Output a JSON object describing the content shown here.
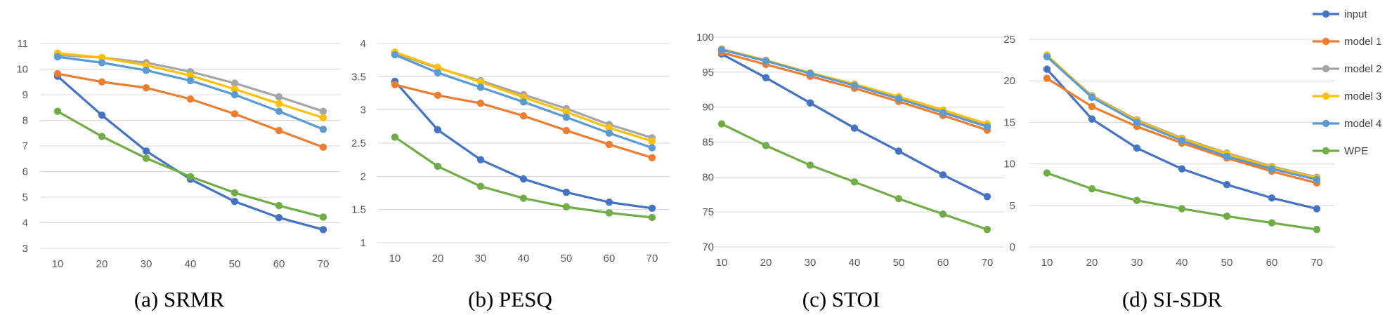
{
  "chart_data": [
    {
      "type": "line",
      "caption": "(a) SRMR",
      "x": [
        10,
        20,
        30,
        40,
        50,
        60,
        70
      ],
      "ylim": [
        3,
        11
      ],
      "yticks": [
        3,
        4,
        5,
        6,
        7,
        8,
        9,
        10,
        11
      ],
      "series": [
        {
          "name": "input",
          "values": [
            9.72,
            8.2,
            6.8,
            5.7,
            4.83,
            4.2,
            3.73
          ]
        },
        {
          "name": "model 1",
          "values": [
            9.82,
            9.5,
            9.27,
            8.83,
            8.25,
            7.6,
            6.95
          ]
        },
        {
          "name": "model 2",
          "values": [
            10.55,
            10.45,
            10.25,
            9.9,
            9.45,
            8.92,
            8.35
          ]
        },
        {
          "name": "model 3",
          "values": [
            10.62,
            10.45,
            10.15,
            9.75,
            9.22,
            8.65,
            8.1
          ]
        },
        {
          "name": "model 4",
          "values": [
            10.48,
            10.25,
            9.95,
            9.55,
            9.0,
            8.35,
            7.65
          ]
        },
        {
          "name": "WPE",
          "values": [
            8.35,
            7.37,
            6.52,
            5.8,
            5.17,
            4.67,
            4.22
          ]
        }
      ]
    },
    {
      "type": "line",
      "caption": "(b) PESQ",
      "x": [
        10,
        20,
        30,
        40,
        50,
        60,
        70
      ],
      "ylim": [
        1,
        4
      ],
      "yticks": [
        1,
        1.5,
        2,
        2.5,
        3,
        3.5,
        4
      ],
      "series": [
        {
          "name": "input",
          "values": [
            3.43,
            2.7,
            2.25,
            1.96,
            1.76,
            1.61,
            1.52
          ]
        },
        {
          "name": "model 1",
          "values": [
            3.38,
            3.22,
            3.1,
            2.91,
            2.69,
            2.48,
            2.28
          ]
        },
        {
          "name": "model 2",
          "values": [
            3.85,
            3.63,
            3.44,
            3.23,
            3.02,
            2.78,
            2.58
          ]
        },
        {
          "name": "model 3",
          "values": [
            3.87,
            3.64,
            3.42,
            3.19,
            2.97,
            2.73,
            2.53
          ]
        },
        {
          "name": "model 4",
          "values": [
            3.83,
            3.56,
            3.34,
            3.12,
            2.89,
            2.65,
            2.43
          ]
        },
        {
          "name": "WPE",
          "values": [
            2.59,
            2.15,
            1.85,
            1.67,
            1.54,
            1.45,
            1.38
          ]
        }
      ]
    },
    {
      "type": "line",
      "caption": "(c) STOI",
      "x": [
        10,
        20,
        30,
        40,
        50,
        60,
        70
      ],
      "ylim": [
        70,
        100
      ],
      "yticks": [
        70,
        75,
        80,
        85,
        90,
        95,
        100
      ],
      "series": [
        {
          "name": "input",
          "values": [
            97.6,
            94.2,
            90.6,
            87.0,
            83.7,
            80.3,
            77.2
          ]
        },
        {
          "name": "model 1",
          "values": [
            97.8,
            96.1,
            94.4,
            92.7,
            90.8,
            88.8,
            86.7
          ]
        },
        {
          "name": "model 2",
          "values": [
            98.3,
            96.7,
            94.9,
            93.2,
            91.4,
            89.5,
            87.5
          ]
        },
        {
          "name": "model 3",
          "values": [
            98.3,
            96.7,
            94.9,
            93.3,
            91.5,
            89.6,
            87.6
          ]
        },
        {
          "name": "model 4",
          "values": [
            98.2,
            96.6,
            94.8,
            93.1,
            91.2,
            89.2,
            87.2
          ]
        },
        {
          "name": "WPE",
          "values": [
            87.6,
            84.5,
            81.7,
            79.3,
            76.9,
            74.7,
            72.5
          ]
        }
      ]
    },
    {
      "type": "line",
      "caption": "(d) SI-SDR",
      "x": [
        10,
        20,
        30,
        40,
        50,
        60,
        70
      ],
      "ylim": [
        0,
        25
      ],
      "yticks": [
        0,
        5,
        10,
        15,
        20,
        25
      ],
      "series": [
        {
          "name": "input",
          "values": [
            21.4,
            15.4,
            11.9,
            9.4,
            7.5,
            5.9,
            4.6
          ]
        },
        {
          "name": "model 1",
          "values": [
            20.3,
            16.9,
            14.5,
            12.5,
            10.7,
            9.1,
            7.7
          ]
        },
        {
          "name": "model 2",
          "values": [
            23.0,
            18.2,
            15.3,
            13.1,
            11.3,
            9.7,
            8.4
          ]
        },
        {
          "name": "model 3",
          "values": [
            23.1,
            18.1,
            15.2,
            13.0,
            11.2,
            9.6,
            8.3
          ]
        },
        {
          "name": "model 4",
          "values": [
            22.9,
            18.0,
            15.0,
            12.8,
            10.9,
            9.4,
            8.1
          ]
        },
        {
          "name": "WPE",
          "values": [
            8.9,
            7.0,
            5.6,
            4.6,
            3.7,
            2.9,
            2.1
          ]
        }
      ]
    }
  ],
  "legend": {
    "placement": "right",
    "entries": [
      "input",
      "model 1",
      "model 2",
      "model 3",
      "model 4",
      "WPE"
    ]
  },
  "colors": {
    "input": "#4472C4",
    "model 1": "#ED7D31",
    "model 2": "#A5A5A5",
    "model 3": "#FFC000",
    "model 4": "#5B9BD5",
    "WPE": "#70AD47",
    "gridline": "#D9D9D9",
    "tick_text": "#595959"
  },
  "grid": true
}
